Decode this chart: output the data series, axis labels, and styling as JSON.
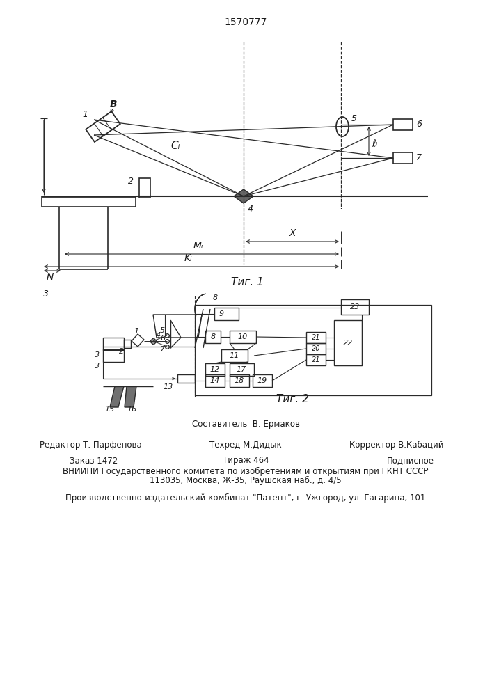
{
  "title": "1570777",
  "bg_color": "#ffffff",
  "line_color": "#2a2a2a",
  "text_color": "#1a1a1a",
  "footer": {
    "sestavitel": "Составитель  В. Ермаков",
    "redaktor": "Редактор Т. Парфенова",
    "tehred": "Техред М.Дидык",
    "korrektor": "Корректор В.Кабаций",
    "zakaz": "Заказ 1472",
    "tirazh": "Тираж 464",
    "podpisnoe": "Подписное",
    "vniipи": "ВНИИПИ Государственного комитета по изобретениям и открытиям при ГКНТ СССР",
    "address": "113035, Москва, Ж-35, Раушская наб., д. 4/5",
    "patent": "Производственно-издательский комбинат \"Патент\", г. Ужгород, ул. Гагарина, 101"
  }
}
